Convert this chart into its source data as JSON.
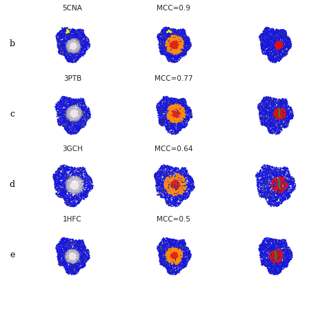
{
  "rows": [
    {
      "label": "b",
      "protein": "5CNA",
      "mcc": "MCC=0.9"
    },
    {
      "label": "c",
      "protein": "3PTB",
      "mcc": "MCC=0.77"
    },
    {
      "label": "d",
      "protein": "3GCH",
      "mcc": "MCC=0.64"
    },
    {
      "label": "e",
      "protein": "1HFC",
      "mcc": "MCC=0.5"
    },
    {
      "label": "",
      "protein": "",
      "mcc": ""
    }
  ],
  "bg_color": "#ffffff",
  "figure_size": [
    4.74,
    4.74
  ],
  "dpi": 100,
  "label_fontsize": 9,
  "text_fontsize": 7.5
}
